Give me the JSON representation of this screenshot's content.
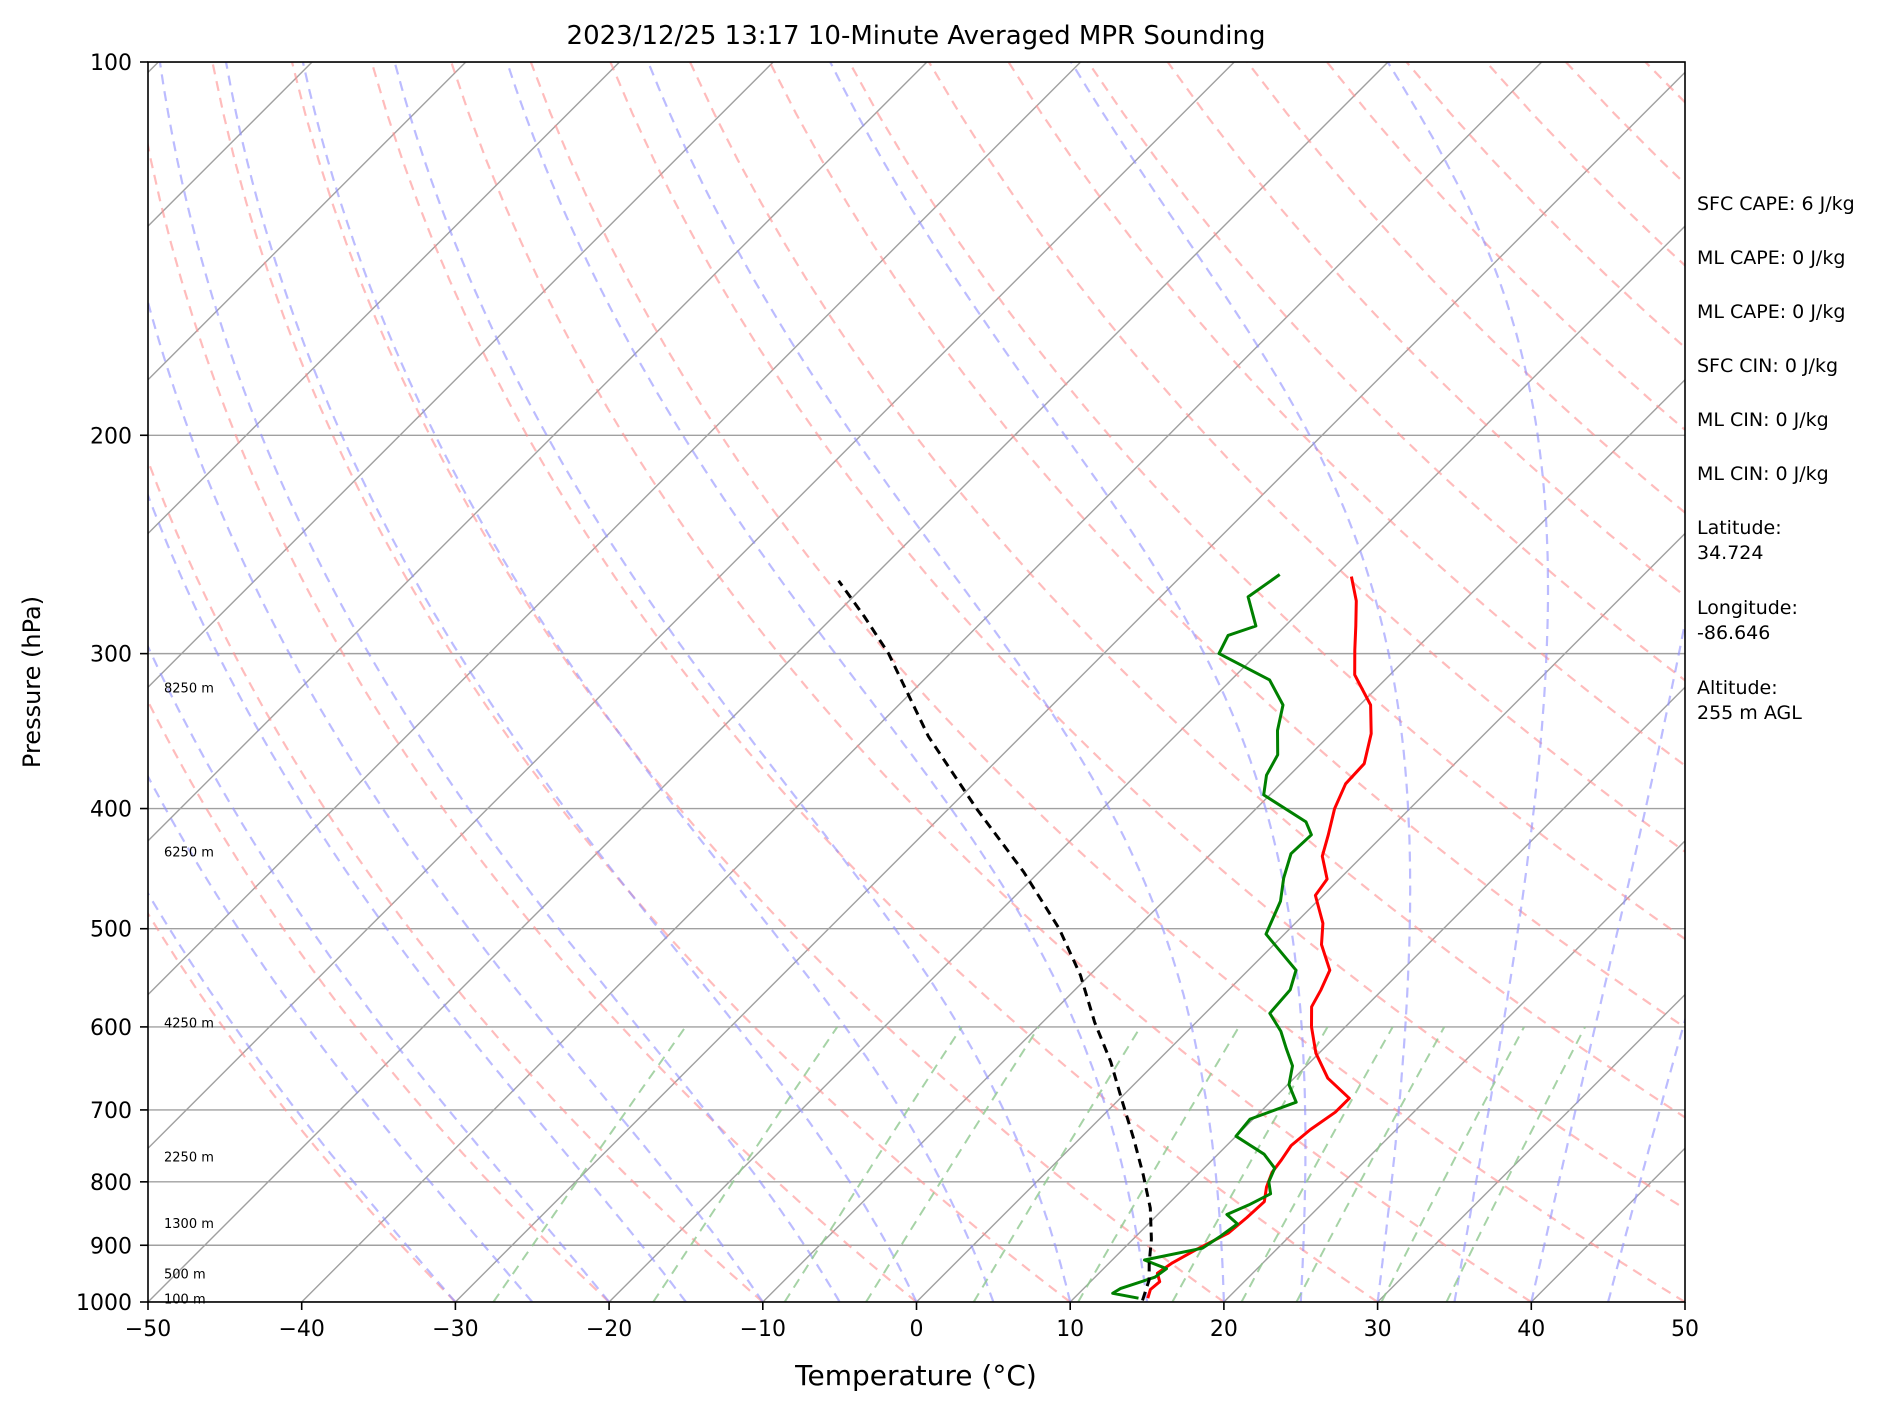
{
  "chart_data": {
    "type": "skew-t",
    "title": "2023/12/25 13:17 10-Minute Averaged MPR Sounding",
    "xlabel": "Temperature (°C)",
    "ylabel": "Pressure (hPa)",
    "xlim": [
      -50,
      50
    ],
    "ylim": [
      1000,
      100
    ],
    "y_scale": "log",
    "x_ticks": [
      -50,
      -40,
      -30,
      -20,
      -10,
      0,
      10,
      20,
      30,
      40,
      50
    ],
    "x_tick_labels": [
      "−50",
      "−40",
      "−30",
      "−20",
      "−10",
      "0",
      "10",
      "20",
      "30",
      "40",
      "50"
    ],
    "y_ticks": [
      1000,
      900,
      800,
      700,
      600,
      500,
      400,
      300,
      200,
      100
    ],
    "y_tick_labels": [
      "1000",
      "900",
      "800",
      "700",
      "600",
      "500",
      "400",
      "300",
      "200",
      "100"
    ],
    "grid": true,
    "series": [
      {
        "color": "#ff0000",
        "style": "solid",
        "points": [
          [
            14.8,
            993
          ],
          [
            14.4,
            977
          ],
          [
            14.5,
            963
          ],
          [
            13.8,
            948
          ],
          [
            14.1,
            930
          ],
          [
            14.8,
            907
          ],
          [
            15.8,
            880
          ],
          [
            16.0,
            855
          ],
          [
            16.1,
            830
          ],
          [
            15.3,
            808
          ],
          [
            14.7,
            786
          ],
          [
            14.5,
            768
          ],
          [
            14.2,
            748
          ],
          [
            14.4,
            726
          ],
          [
            14.9,
            703
          ],
          [
            14.9,
            685
          ],
          [
            12.2,
            660
          ],
          [
            9.8,
            630
          ],
          [
            7.8,
            600
          ],
          [
            6.5,
            578
          ],
          [
            6.0,
            560
          ],
          [
            5.3,
            540
          ],
          [
            3.1,
            515
          ],
          [
            1.8,
            495
          ],
          [
            -0.5,
            470
          ],
          [
            -0.8,
            456
          ],
          [
            -2.6,
            437
          ],
          [
            -3.6,
            420
          ],
          [
            -4.9,
            400
          ],
          [
            -5.8,
            382
          ],
          [
            -5.9,
            368
          ],
          [
            -7.4,
            348
          ],
          [
            -9.3,
            330
          ],
          [
            -12.3,
            312
          ],
          [
            -13.9,
            298
          ],
          [
            -15.4,
            285
          ],
          [
            -17.0,
            272
          ],
          [
            -18.9,
            260
          ]
        ]
      },
      {
        "color": "#008000",
        "style": "solid",
        "points": [
          [
            14.2,
            993
          ],
          [
            12.2,
            984
          ],
          [
            12.4,
            975
          ],
          [
            13.9,
            955
          ],
          [
            14.1,
            940
          ],
          [
            12.1,
            925
          ],
          [
            15.1,
            905
          ],
          [
            15.5,
            885
          ],
          [
            15.8,
            865
          ],
          [
            14.5,
            850
          ],
          [
            15.3,
            835
          ],
          [
            16.0,
            818
          ],
          [
            15.1,
            800
          ],
          [
            14.6,
            780
          ],
          [
            13.0,
            760
          ],
          [
            10.0,
            735
          ],
          [
            9.8,
            712
          ],
          [
            11.7,
            690
          ],
          [
            10.1,
            668
          ],
          [
            9.1,
            645
          ],
          [
            7.6,
            625
          ],
          [
            6.1,
            605
          ],
          [
            4.2,
            585
          ],
          [
            4.0,
            560
          ],
          [
            3.1,
            540
          ],
          [
            -1.2,
            505
          ],
          [
            -2.4,
            475
          ],
          [
            -3.7,
            455
          ],
          [
            -4.8,
            435
          ],
          [
            -4.7,
            420
          ],
          [
            -5.9,
            410
          ],
          [
            -10.4,
            390
          ],
          [
            -11.5,
            376
          ],
          [
            -12.1,
            362
          ],
          [
            -13.7,
            346
          ],
          [
            -15.0,
            330
          ],
          [
            -17.5,
            315
          ],
          [
            -22.5,
            300
          ],
          [
            -23.1,
            290
          ],
          [
            -21.9,
            285
          ],
          [
            -24.3,
            270
          ],
          [
            -23.7,
            259
          ]
        ]
      },
      {
        "color": "#000000",
        "style": "dashed",
        "points": [
          [
            14.6,
            997
          ],
          [
            13.7,
            960
          ],
          [
            12.6,
            930
          ],
          [
            11.2,
            890
          ],
          [
            9.1,
            840
          ],
          [
            6.5,
            790
          ],
          [
            3.6,
            740
          ],
          [
            0.4,
            690
          ],
          [
            -3.0,
            640
          ],
          [
            -6.6,
            595
          ],
          [
            -10.6,
            545
          ],
          [
            -15.0,
            500
          ],
          [
            -21.0,
            450
          ],
          [
            -28.2,
            400
          ],
          [
            -36.0,
            350
          ],
          [
            -44.0,
            300
          ],
          [
            -48.0,
            280
          ],
          [
            -52.0,
            262
          ]
        ]
      }
    ],
    "reference_lines": {
      "isotherms_color": "#a0a0a0",
      "dry_adiabats_color": "#ff9090",
      "moist_adiabats_color": "#9090ff",
      "mixing_ratio_color": "#90c890"
    },
    "height_labels": [
      {
        "label": "100 m",
        "pressure": 995
      },
      {
        "label": "500 m",
        "pressure": 950
      },
      {
        "label": "1300 m",
        "pressure": 865
      },
      {
        "label": "2250 m",
        "pressure": 765
      },
      {
        "label": "4250 m",
        "pressure": 596
      },
      {
        "label": "6250 m",
        "pressure": 434
      },
      {
        "label": "8250 m",
        "pressure": 320
      }
    ],
    "side_info": [
      "SFC CAPE: 6 J/kg",
      "ML CAPE: 0 J/kg",
      "ML CAPE: 0 J/kg",
      "SFC CIN: 0 J/kg",
      "ML CIN: 0 J/kg",
      "ML CIN: 0 J/kg",
      "Latitude:\n34.724",
      "Longitude:\n-86.646",
      "Altitude:\n255 m AGL"
    ]
  }
}
